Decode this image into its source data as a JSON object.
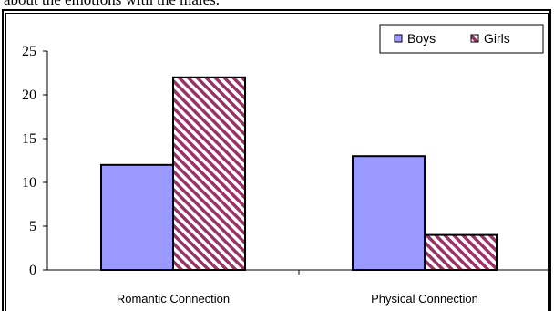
{
  "page": {
    "top_text": "about the emotions with the males."
  },
  "colors": {
    "boys_fill": "#9999ff",
    "girls_stripe": "#993366",
    "axis": "#000000"
  },
  "chart_data": {
    "type": "bar",
    "categories": [
      "Romantic Connection",
      "Physical Connection"
    ],
    "series": [
      {
        "name": "Boys",
        "values": [
          12,
          13
        ],
        "pattern": "solid"
      },
      {
        "name": "Girls",
        "values": [
          22,
          4
        ],
        "pattern": "diagonal-stripes"
      }
    ],
    "yticks": [
      0,
      5,
      10,
      15,
      20,
      25
    ],
    "ylim": [
      0,
      25
    ],
    "grid": false,
    "legend_position": "top-right",
    "title": "",
    "xlabel": "",
    "ylabel": ""
  }
}
